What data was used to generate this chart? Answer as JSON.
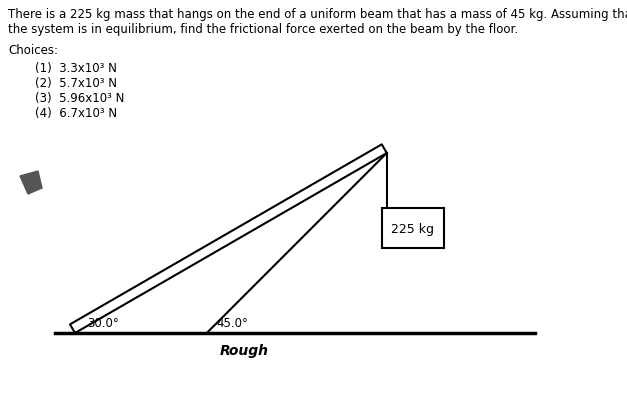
{
  "title_line1": "There is a 225 kg mass that hangs on the end of a uniform beam that has a mass of 45 kg. Assuming that",
  "title_line2": "the system is in equilibrium, find the frictional force exerted on the beam by the floor.",
  "choices_label": "Choices:",
  "choices": [
    "(1)  3.3x10³ N",
    "(2)  5.7x10³ N",
    "(3)  5.96x10³ N",
    "(4)  6.7x10³ N"
  ],
  "angle_beam_label": "30.0°",
  "angle_cable_label": "45.0°",
  "mass_label": "225 kg",
  "floor_label": "Rough",
  "bg_color": "#ffffff",
  "text_color": "#000000",
  "line_color": "#000000",
  "fig_width": 6.27,
  "fig_height": 4.02,
  "dpi": 100
}
